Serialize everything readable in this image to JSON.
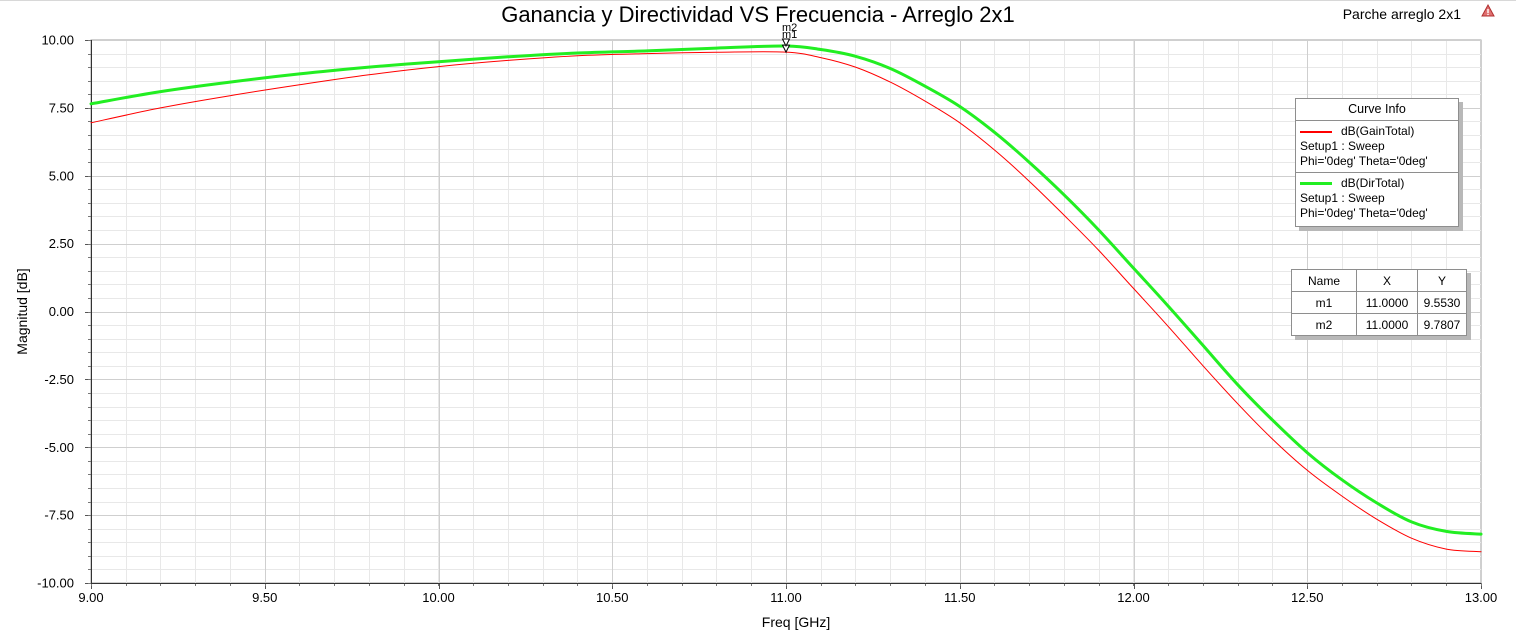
{
  "chart_data": {
    "type": "line",
    "title": "Ganancia y Directividad VS Frecuencia - Arreglo 2x1",
    "xlabel": "Freq [GHz]",
    "ylabel": "Magnitud [dB]",
    "xlim": [
      9.0,
      13.0
    ],
    "ylim": [
      -10.0,
      10.0
    ],
    "x_ticks": [
      "9.00",
      "9.50",
      "10.00",
      "10.50",
      "11.00",
      "11.50",
      "12.00",
      "12.50",
      "13.00"
    ],
    "y_ticks": [
      "10.00",
      "7.50",
      "5.00",
      "2.50",
      "0.00",
      "-2.50",
      "-5.00",
      "-7.50",
      "-10.00"
    ],
    "grid": true,
    "legend_position": "right",
    "x": [
      9.0,
      9.2,
      9.4,
      9.6,
      9.8,
      10.0,
      10.2,
      10.4,
      10.6,
      10.8,
      11.0,
      11.1,
      11.2,
      11.3,
      11.4,
      11.5,
      11.6,
      11.7,
      11.8,
      11.9,
      12.0,
      12.1,
      12.2,
      12.3,
      12.4,
      12.5,
      12.6,
      12.7,
      12.8,
      12.9,
      13.0
    ],
    "series": [
      {
        "name": "dB(GainTotal)",
        "color": "#ff0000",
        "width": 1,
        "values": [
          6.95,
          7.5,
          7.95,
          8.35,
          8.72,
          9.02,
          9.25,
          9.42,
          9.5,
          9.55,
          9.553,
          9.35,
          9.0,
          8.45,
          7.75,
          6.95,
          5.95,
          4.8,
          3.55,
          2.25,
          0.85,
          -0.55,
          -2.0,
          -3.4,
          -4.7,
          -5.85,
          -6.8,
          -7.65,
          -8.35,
          -8.75,
          -8.85
        ]
      },
      {
        "name": "dB(DirTotal)",
        "color": "#22ee22",
        "width": 3,
        "values": [
          7.65,
          8.1,
          8.45,
          8.75,
          9.0,
          9.2,
          9.38,
          9.52,
          9.6,
          9.7,
          9.7807,
          9.65,
          9.4,
          8.95,
          8.3,
          7.55,
          6.6,
          5.5,
          4.3,
          3.0,
          1.6,
          0.2,
          -1.25,
          -2.7,
          -4.0,
          -5.2,
          -6.2,
          -7.05,
          -7.75,
          -8.1,
          -8.2
        ]
      }
    ],
    "markers": [
      {
        "name": "m1",
        "x": 11.0,
        "y": 9.553
      },
      {
        "name": "m2",
        "x": 11.0,
        "y": 9.7807
      }
    ]
  },
  "design_name": "Parche arreglo 2x1",
  "curve_info": {
    "title": "Curve Info",
    "entries": [
      {
        "name": "dB(GainTotal)",
        "setup": "Setup1 : Sweep",
        "params": "Phi='0deg' Theta='0deg'"
      },
      {
        "name": "dB(DirTotal)",
        "setup": "Setup1 : Sweep",
        "params": "Phi='0deg' Theta='0deg'"
      }
    ]
  },
  "marker_table": {
    "headers": [
      "Name",
      "X",
      "Y"
    ],
    "rows": [
      [
        "m1",
        "11.0000",
        "9.5530"
      ],
      [
        "m2",
        "11.0000",
        "9.7807"
      ]
    ]
  },
  "marker_labels": [
    "m2",
    "m1"
  ],
  "icons": {
    "corner": "warning-triangle-icon"
  }
}
